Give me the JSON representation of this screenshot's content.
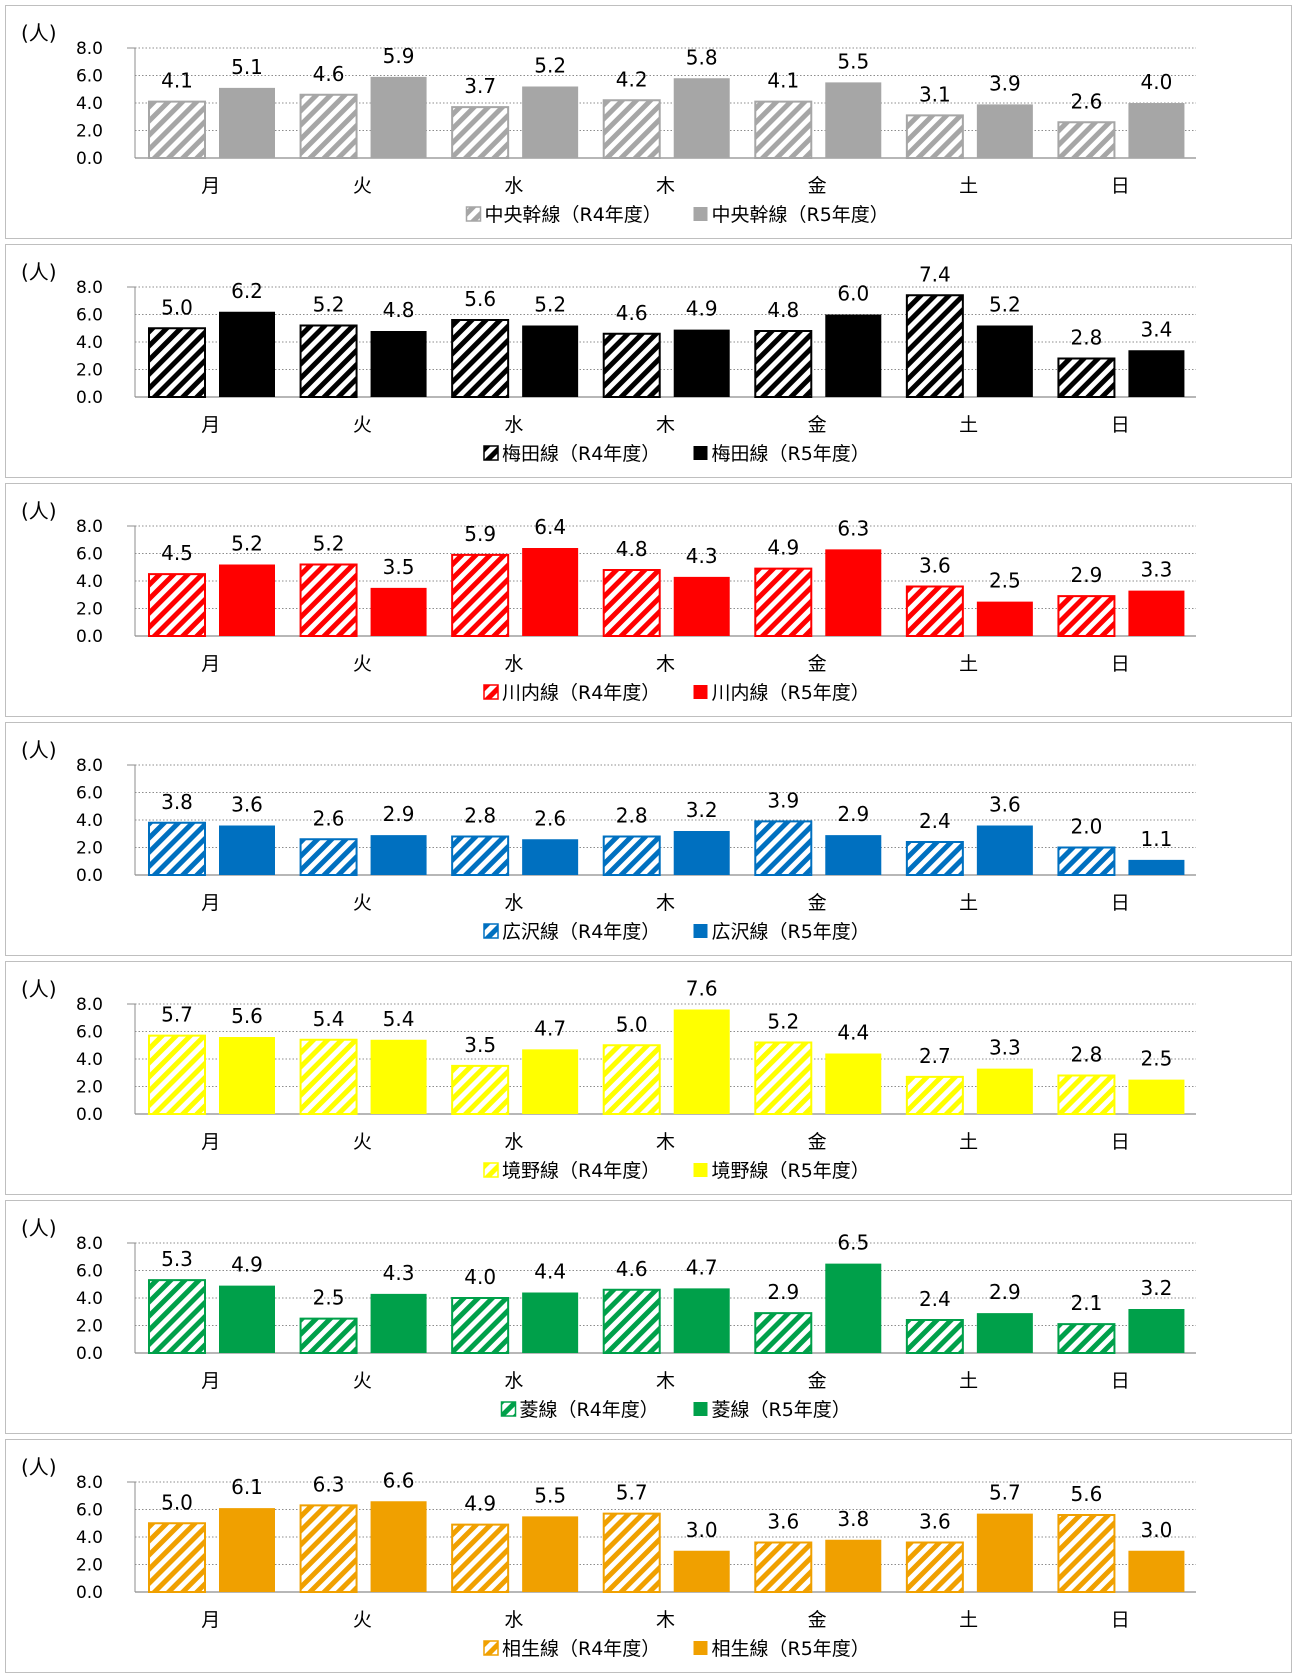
{
  "chart_data": [
    {
      "type": "bar",
      "unit_label": "(人)",
      "categories": [
        "月",
        "火",
        "水",
        "木",
        "金",
        "土",
        "日"
      ],
      "ylim": [
        0,
        8
      ],
      "yticks": [
        "0.0",
        "2.0",
        "4.0",
        "6.0",
        "8.0"
      ],
      "grid": true,
      "legend": "bottom",
      "color": "#a6a6a6",
      "series": [
        {
          "name": "中央幹線（R4年度）",
          "pattern": "hatched",
          "values": [
            4.1,
            4.6,
            3.7,
            4.2,
            4.1,
            3.1,
            2.6
          ],
          "labels": [
            "4.1",
            "4.6",
            "3.7",
            "4.2",
            "4.1",
            "3.1",
            "2.6"
          ]
        },
        {
          "name": "中央幹線（R5年度）",
          "pattern": "solid",
          "values": [
            5.1,
            5.9,
            5.2,
            5.8,
            5.5,
            3.9,
            4.0
          ],
          "labels": [
            "5.1",
            "5.9",
            "5.2",
            "5.8",
            "5.5",
            "3.9",
            "4.0"
          ]
        }
      ]
    },
    {
      "type": "bar",
      "unit_label": "(人)",
      "categories": [
        "月",
        "火",
        "水",
        "木",
        "金",
        "土",
        "日"
      ],
      "ylim": [
        0,
        8
      ],
      "yticks": [
        "0.0",
        "2.0",
        "4.0",
        "6.0",
        "8.0"
      ],
      "grid": true,
      "legend": "bottom",
      "color": "#000000",
      "series": [
        {
          "name": "梅田線（R4年度）",
          "pattern": "hatched",
          "values": [
            5.0,
            5.2,
            5.6,
            4.6,
            4.8,
            7.4,
            2.8
          ],
          "labels": [
            "5.0",
            "5.2",
            "5.6",
            "4.6",
            "4.8",
            "7.4",
            "2.8"
          ]
        },
        {
          "name": "梅田線（R5年度）",
          "pattern": "solid",
          "values": [
            6.2,
            4.8,
            5.2,
            4.9,
            6.0,
            5.2,
            3.4
          ],
          "labels": [
            "6.2",
            "4.8",
            "5.2",
            "4.9",
            "6.0",
            "5.2",
            "3.4"
          ]
        }
      ]
    },
    {
      "type": "bar",
      "unit_label": "(人)",
      "categories": [
        "月",
        "火",
        "水",
        "木",
        "金",
        "土",
        "日"
      ],
      "ylim": [
        0,
        8
      ],
      "yticks": [
        "0.0",
        "2.0",
        "4.0",
        "6.0",
        "8.0"
      ],
      "grid": true,
      "legend": "bottom",
      "color": "#ff0000",
      "series": [
        {
          "name": "川内線（R4年度）",
          "pattern": "hatched",
          "values": [
            4.5,
            5.2,
            5.9,
            4.8,
            4.9,
            3.6,
            2.9
          ],
          "labels": [
            "4.5",
            "5.2",
            "5.9",
            "4.8",
            "4.9",
            "3.6",
            "2.9"
          ]
        },
        {
          "name": "川内線（R5年度）",
          "pattern": "solid",
          "values": [
            5.2,
            3.5,
            6.4,
            4.3,
            6.3,
            2.5,
            3.3
          ],
          "labels": [
            "5.2",
            "3.5",
            "6.4",
            "4.3",
            "6.3",
            "2.5",
            "3.3"
          ]
        }
      ]
    },
    {
      "type": "bar",
      "unit_label": "(人)",
      "categories": [
        "月",
        "火",
        "水",
        "木",
        "金",
        "土",
        "日"
      ],
      "ylim": [
        0,
        8
      ],
      "yticks": [
        "0.0",
        "2.0",
        "4.0",
        "6.0",
        "8.0"
      ],
      "grid": true,
      "legend": "bottom",
      "color": "#0070c0",
      "series": [
        {
          "name": "広沢線（R4年度）",
          "pattern": "hatched",
          "values": [
            3.8,
            2.6,
            2.8,
            2.8,
            3.9,
            2.4,
            2.0
          ],
          "labels": [
            "3.8",
            "2.6",
            "2.8",
            "2.8",
            "3.9",
            "2.4",
            "2.0"
          ]
        },
        {
          "name": "広沢線（R5年度）",
          "pattern": "solid",
          "values": [
            3.6,
            2.9,
            2.6,
            3.2,
            2.9,
            3.6,
            1.1
          ],
          "labels": [
            "3.6",
            "2.9",
            "2.6",
            "3.2",
            "2.9",
            "3.6",
            "1.1"
          ]
        }
      ]
    },
    {
      "type": "bar",
      "unit_label": "(人)",
      "categories": [
        "月",
        "火",
        "水",
        "木",
        "金",
        "土",
        "日"
      ],
      "ylim": [
        0,
        8
      ],
      "yticks": [
        "0.0",
        "2.0",
        "4.0",
        "6.0",
        "8.0"
      ],
      "grid": true,
      "legend": "bottom",
      "color": "#ffff00",
      "series": [
        {
          "name": "境野線（R4年度）",
          "pattern": "hatched",
          "values": [
            5.7,
            5.4,
            3.5,
            5.0,
            5.2,
            2.7,
            2.8
          ],
          "labels": [
            "5.7",
            "5.4",
            "3.5",
            "5.0",
            "5.2",
            "2.7",
            "2.8"
          ]
        },
        {
          "name": "境野線（R5年度）",
          "pattern": "solid",
          "values": [
            5.6,
            5.4,
            4.7,
            7.6,
            4.4,
            3.3,
            2.5
          ],
          "labels": [
            "5.6",
            "5.4",
            "4.7",
            "7.6",
            "4.4",
            "3.3",
            "2.5"
          ]
        }
      ]
    },
    {
      "type": "bar",
      "unit_label": "(人)",
      "categories": [
        "月",
        "火",
        "水",
        "木",
        "金",
        "土",
        "日"
      ],
      "ylim": [
        0,
        8
      ],
      "yticks": [
        "0.0",
        "2.0",
        "4.0",
        "6.0",
        "8.0"
      ],
      "grid": true,
      "legend": "bottom",
      "color": "#00a04a",
      "series": [
        {
          "name": "菱線（R4年度）",
          "pattern": "hatched",
          "values": [
            5.3,
            2.5,
            4.0,
            4.6,
            2.9,
            2.4,
            2.1
          ],
          "labels": [
            "5.3",
            "2.5",
            "4.0",
            "4.6",
            "2.9",
            "2.4",
            "2.1"
          ]
        },
        {
          "name": "菱線（R5年度）",
          "pattern": "solid",
          "values": [
            4.9,
            4.3,
            4.4,
            4.7,
            6.5,
            2.9,
            3.2
          ],
          "labels": [
            "4.9",
            "4.3",
            "4.4",
            "4.7",
            "6.5",
            "2.9",
            "3.2"
          ]
        }
      ]
    },
    {
      "type": "bar",
      "unit_label": "(人)",
      "categories": [
        "月",
        "火",
        "水",
        "木",
        "金",
        "土",
        "日"
      ],
      "ylim": [
        0,
        8
      ],
      "yticks": [
        "0.0",
        "2.0",
        "4.0",
        "6.0",
        "8.0"
      ],
      "grid": true,
      "legend": "bottom",
      "color": "#f0a000",
      "series": [
        {
          "name": "相生線（R4年度）",
          "pattern": "hatched",
          "values": [
            5.0,
            6.3,
            4.9,
            5.7,
            3.6,
            3.6,
            5.6
          ],
          "labels": [
            "5.0",
            "6.3",
            "4.9",
            "5.7",
            "3.6",
            "3.6",
            "5.6"
          ]
        },
        {
          "name": "相生線（R5年度）",
          "pattern": "solid",
          "values": [
            6.1,
            6.6,
            5.5,
            3.0,
            3.8,
            5.7,
            3.0
          ],
          "labels": [
            "6.1",
            "6.6",
            "5.5",
            "3.0",
            "3.8",
            "5.7",
            "3.0"
          ]
        }
      ]
    }
  ]
}
